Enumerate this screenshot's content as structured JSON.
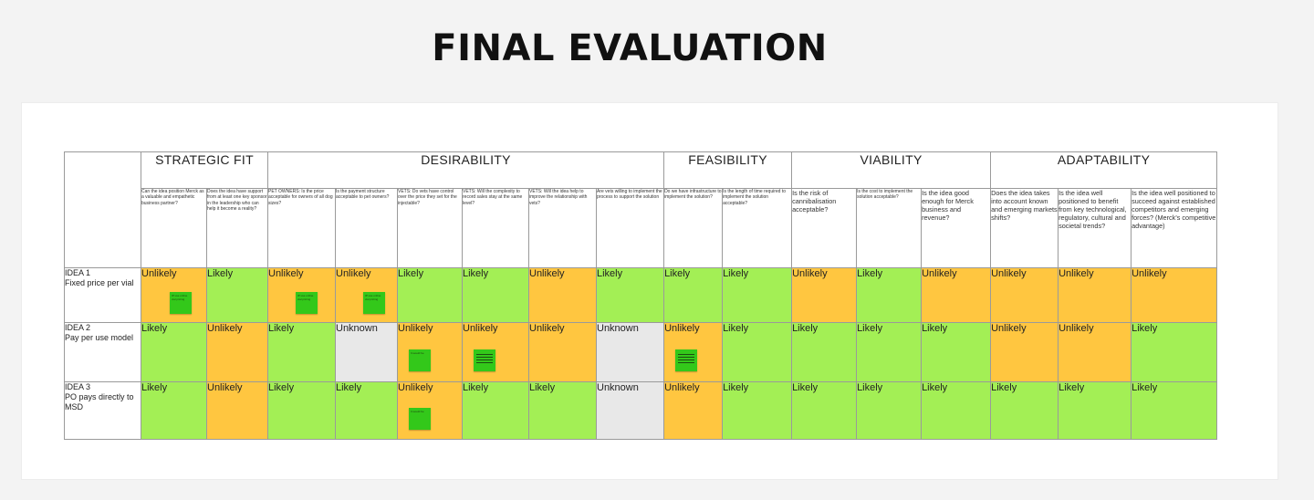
{
  "title": "FINAL EVALUATION",
  "categories": [
    "STRATEGIC FIT",
    "DESIRABILITY",
    "FEASIBILITY",
    "VIABILITY",
    "ADAPTABILITY"
  ],
  "questions": [
    "Can the idea position Merck as a valuable and empathetic business partner?",
    "Does the idea have support from at least one key sponsor in the leadership who can help it become a reality?",
    "PET OWNERS: Is the price acceptable for owners of all dog sizes?",
    "Is the payment structure acceptable to pet owners?",
    "VETS: Do vets have control over the price they set for the injectable?",
    "VETS: Will the complexity to record sales stay at the same level?",
    "VETS: Will the idea help to improve the relationship with vets?",
    "Are vets willing to implement the process to support the solution",
    "Do we have infrastructure to implement the solution?",
    "Is the length of time required to implement the solution acceptable?",
    "Is the risk of cannibalisation acceptable?",
    "Is the cost to implement the solution acceptable?",
    "Is the idea good enough for Merck business and revenue?",
    "Does the idea takes into account known and emerging markets shifts?",
    "Is the idea well positioned to benefit from key technological, regulatory, cultural and societal trends?",
    "Is the idea well positioned to succeed against established competitors and emerging forces? (Merck's competitive advantage)"
  ],
  "ideas": [
    {
      "label_line1": "IDEA 1",
      "label_line2": "Fixed price per vial",
      "values": [
        "Unlikely",
        "Likely",
        "Unlikely",
        "Unlikely",
        "Likely",
        "Likely",
        "Unlikely",
        "Likely",
        "Likely",
        "Likely",
        "Unlikely",
        "Likely",
        "Unlikely",
        "Unlikely",
        "Unlikely",
        "Unlikely"
      ]
    },
    {
      "label_line1": "IDEA 2",
      "label_line2": "Pay per use model",
      "values": [
        "Likely",
        "Unlikely",
        "Likely",
        "Unknown",
        "Unlikely",
        "Unlikely",
        "Unlikely",
        "Unknown",
        "Unlikely",
        "Likely",
        "Likely",
        "Likely",
        "Likely",
        "Unlikely",
        "Unlikely",
        "Likely"
      ]
    },
    {
      "label_line1": "IDEA 3",
      "label_line2": "PO pays directly to MSD",
      "values": [
        "Likely",
        "Unlikely",
        "Likely",
        "Likely",
        "Unlikely",
        "Likely",
        "Likely",
        "Unknown",
        "Unlikely",
        "Likely",
        "Likely",
        "Likely",
        "Likely",
        "Likely",
        "Likely",
        "Likely"
      ]
    }
  ],
  "sticky_notes": {
    "n1": "IP use online vial pricing",
    "n2": "IP use online vial pricing",
    "n3": "IP use online vial pricing",
    "n4": "It would be",
    "n5": "It would be"
  },
  "colors": {
    "likely": "#a3ef55",
    "unlikely": "#ffc640",
    "unknown": "#e8e8e8",
    "sticky": "#33c81a"
  }
}
